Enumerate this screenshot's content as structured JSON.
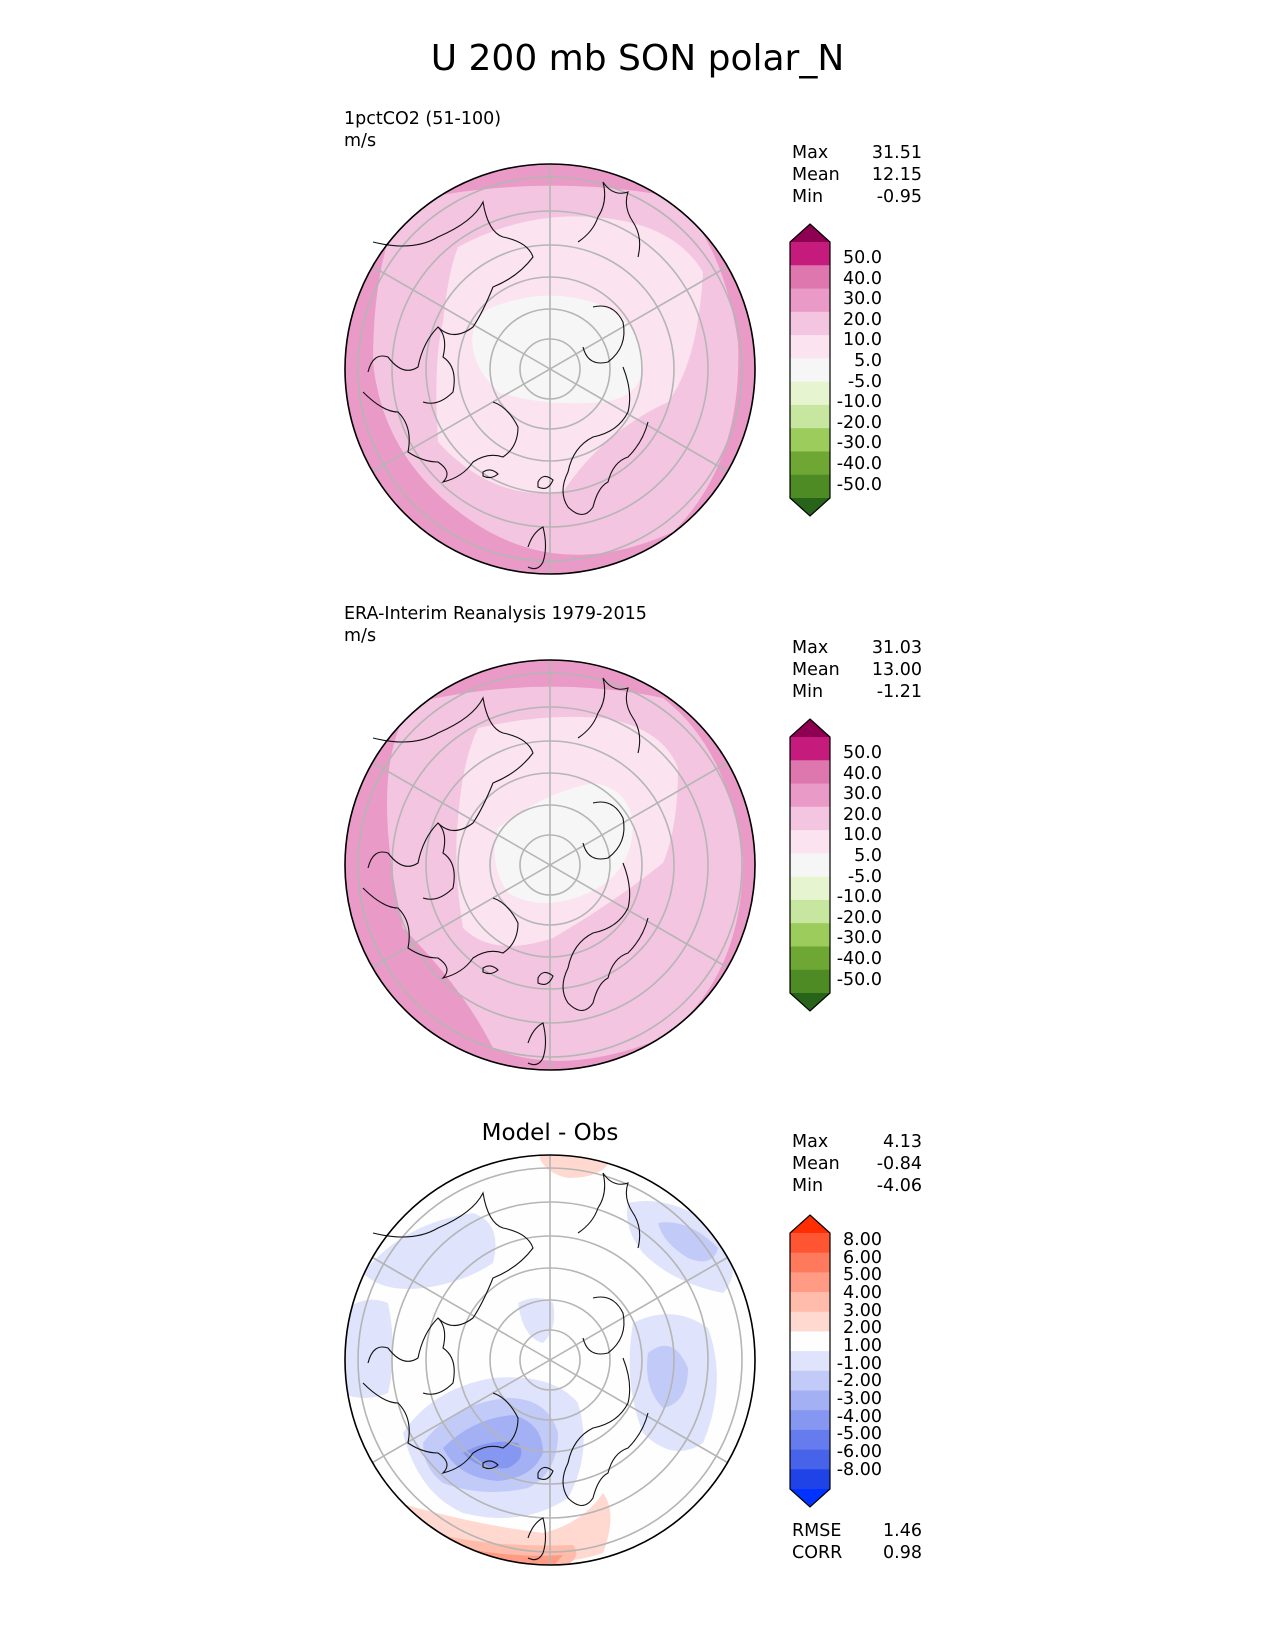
{
  "figure": {
    "title": "U 200 mb SON polar_N"
  },
  "panels": [
    {
      "id": "model",
      "title_line1": "1pctCO2 (51-100)",
      "title_line2": "m/s",
      "stats": [
        {
          "label": "Max",
          "value": "31.51"
        },
        {
          "label": "Mean",
          "value": "12.15"
        },
        {
          "label": "Min",
          "value": "-0.95"
        }
      ],
      "colorbar": {
        "levels": [
          "50.0",
          "40.0",
          "30.0",
          "20.0",
          "10.0",
          "5.0",
          "-5.0",
          "-10.0",
          "-20.0",
          "-30.0",
          "-40.0",
          "-50.0"
        ],
        "colors": [
          "#8e0152",
          "#c51b7d",
          "#de77ae",
          "#e99ac7",
          "#f3c5e0",
          "#fbe3f0",
          "#f6f6f6",
          "#e6f5d0",
          "#c7e7a0",
          "#9bcc5c",
          "#6ea734",
          "#4e8b25",
          "#276419"
        ]
      }
    },
    {
      "id": "obs",
      "title_line1": "ERA-Interim Reanalysis 1979-2015",
      "title_line2": "m/s",
      "stats": [
        {
          "label": "Max",
          "value": "31.03"
        },
        {
          "label": "Mean",
          "value": "13.00"
        },
        {
          "label": "Min",
          "value": "-1.21"
        }
      ],
      "colorbar": {
        "levels": [
          "50.0",
          "40.0",
          "30.0",
          "20.0",
          "10.0",
          "5.0",
          "-5.0",
          "-10.0",
          "-20.0",
          "-30.0",
          "-40.0",
          "-50.0"
        ],
        "colors": [
          "#8e0152",
          "#c51b7d",
          "#de77ae",
          "#e99ac7",
          "#f3c5e0",
          "#fbe3f0",
          "#f6f6f6",
          "#e6f5d0",
          "#c7e7a0",
          "#9bcc5c",
          "#6ea734",
          "#4e8b25",
          "#276419"
        ]
      }
    },
    {
      "id": "diff",
      "title": "Model - Obs",
      "stats": [
        {
          "label": "Max",
          "value": "4.13"
        },
        {
          "label": "Mean",
          "value": "-0.84"
        },
        {
          "label": "Min",
          "value": "-4.06"
        }
      ],
      "extra_stats": [
        {
          "label": "RMSE",
          "value": "1.46"
        },
        {
          "label": "CORR",
          "value": "0.98"
        }
      ],
      "colorbar": {
        "levels": [
          "8.00",
          "6.00",
          "5.00",
          "4.00",
          "3.00",
          "2.00",
          "1.00",
          "-1.00",
          "-2.00",
          "-3.00",
          "-4.00",
          "-5.00",
          "-6.00",
          "-8.00"
        ],
        "colors": [
          "#ff2d00",
          "#ff5533",
          "#ff7a5c",
          "#ff9b85",
          "#ffbcab",
          "#ffd9cf",
          "#fefefe",
          "#dfe3fb",
          "#c2cbf8",
          "#a3b1f4",
          "#8597f1",
          "#667cee",
          "#4663ea",
          "#1f43e6",
          "#0033ff"
        ]
      }
    }
  ],
  "chart_data": {
    "type": "heatmap",
    "projection": "north polar stereographic",
    "title": "U 200 mb SON polar_N",
    "panels": [
      {
        "title": "1pctCO2 (51-100)",
        "units": "m/s",
        "max": 31.51,
        "mean": 12.15,
        "min": -0.95,
        "colorbar_levels": [
          -50,
          -40,
          -30,
          -20,
          -10,
          -5,
          5,
          10,
          20,
          30,
          40,
          50
        ]
      },
      {
        "title": "ERA-Interim Reanalysis 1979-2015",
        "units": "m/s",
        "max": 31.03,
        "mean": 13.0,
        "min": -1.21,
        "colorbar_levels": [
          -50,
          -40,
          -30,
          -20,
          -10,
          -5,
          5,
          10,
          20,
          30,
          40,
          50
        ]
      },
      {
        "title": "Model - Obs",
        "max": 4.13,
        "mean": -0.84,
        "min": -4.06,
        "rmse": 1.46,
        "corr": 0.98,
        "colorbar_levels": [
          -8,
          -6,
          -5,
          -4,
          -3,
          -2,
          -1,
          1,
          2,
          3,
          4,
          5,
          6,
          8
        ]
      }
    ]
  }
}
